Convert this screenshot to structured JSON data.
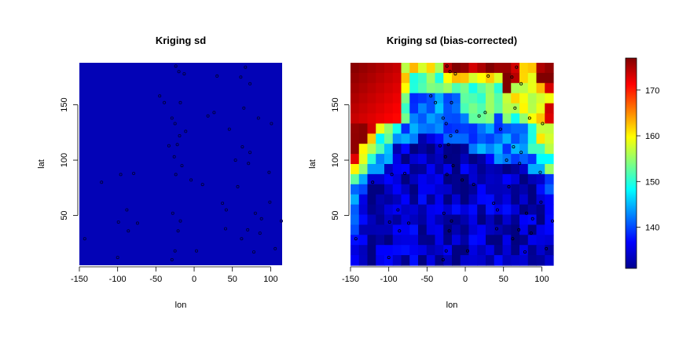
{
  "figure": {
    "background": "#ffffff"
  },
  "chart_data": [
    {
      "type": "heatmap",
      "title": "Kriging sd",
      "xlabel": "lon",
      "ylabel": "lat",
      "xlim": [
        -150,
        115
      ],
      "ylim": [
        5,
        188
      ],
      "xticks": [
        -150,
        -100,
        -50,
        0,
        50,
        100
      ],
      "yticks": [
        50,
        100,
        150
      ],
      "fill_color": "#0303b6",
      "description_values": "nearly uniform low sd field with sample points overlaid"
    },
    {
      "type": "heatmap",
      "title": "Kriging sd (bias-corrected)",
      "xlabel": "lon",
      "ylabel": "lat",
      "xlim": [
        -150,
        115
      ],
      "ylim": [
        5,
        188
      ],
      "xticks": [
        -150,
        -100,
        -50,
        0,
        50,
        100
      ],
      "yticks": [
        50,
        100,
        150
      ]
    }
  ],
  "colorbar": {
    "min": 131,
    "max": 177,
    "ticks": [
      140,
      150,
      160,
      170
    ],
    "colormap": "jet"
  },
  "sample_points": [
    [
      -24,
      185
    ],
    [
      -20,
      180
    ],
    [
      -13,
      178
    ],
    [
      30,
      176
    ],
    [
      67,
      184
    ],
    [
      61,
      175
    ],
    [
      73,
      169
    ],
    [
      -45,
      158
    ],
    [
      -39,
      152
    ],
    [
      -18,
      152
    ],
    [
      26,
      143
    ],
    [
      65,
      147
    ],
    [
      84,
      138
    ],
    [
      101,
      133
    ],
    [
      -29,
      138
    ],
    [
      -25,
      133
    ],
    [
      -33,
      113
    ],
    [
      -26,
      103
    ],
    [
      46,
      128
    ],
    [
      -19,
      122
    ],
    [
      -11,
      126
    ],
    [
      -22,
      114
    ],
    [
      18,
      140
    ],
    [
      63,
      112
    ],
    [
      73,
      107
    ],
    [
      71,
      97
    ],
    [
      -16,
      95
    ],
    [
      -24,
      87
    ],
    [
      -4,
      82
    ],
    [
      11,
      78
    ],
    [
      57,
      76
    ],
    [
      54,
      100
    ],
    [
      98,
      89
    ],
    [
      -96,
      87
    ],
    [
      -79,
      88
    ],
    [
      -121,
      80
    ],
    [
      -88,
      55
    ],
    [
      -99,
      44
    ],
    [
      -86,
      36
    ],
    [
      -74,
      43
    ],
    [
      -28,
      52
    ],
    [
      -21,
      36
    ],
    [
      -25,
      18
    ],
    [
      -29,
      10
    ],
    [
      3,
      18
    ],
    [
      37,
      61
    ],
    [
      42,
      55
    ],
    [
      88,
      47
    ],
    [
      86,
      34
    ],
    [
      114,
      45
    ],
    [
      70,
      37
    ],
    [
      62,
      29
    ],
    [
      78,
      17
    ],
    [
      106,
      20
    ],
    [
      -143,
      29
    ],
    [
      -100,
      12
    ],
    [
      41,
      38
    ],
    [
      99,
      62
    ],
    [
      80,
      52
    ],
    [
      -18,
      45
    ]
  ],
  "sd_field_rows": [
    "555555444445555555554455",
    "555554433334444444554455",
    "555554433333333333544445",
    "555543322222233333444444",
    "555543322222233333444445",
    "555543322222223332333445",
    "555433222222222222222344",
    "554332221112222222222344",
    "544321111111112222222334",
    "543221111111111112222233",
    "432211111111111111111223",
    "321111111111111111111112",
    "221111111111111111111112",
    "211111111111111111111111",
    "211111111111111111111111",
    "211111111111111111111111",
    "211111111111111111111111",
    "111111111111111111111111",
    "111111111111111111111111",
    "111111111111111111111111"
  ],
  "grid": {
    "cols": 24,
    "rows": 20
  }
}
